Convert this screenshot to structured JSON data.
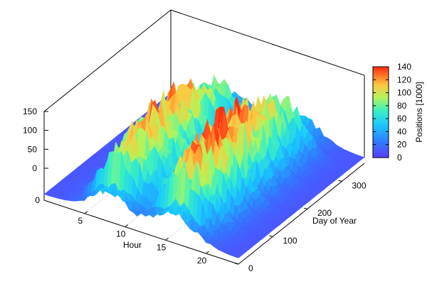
{
  "chart_data": {
    "type": "surface3d",
    "title": "",
    "xlabel": "Hour",
    "ylabel": "Day of Year",
    "zlabel": "",
    "colorbar_label": "Positions [1000]",
    "x_ticks": [
      "5",
      "10",
      "15",
      "20"
    ],
    "y_ticks": [
      "0",
      "100",
      "200",
      "300"
    ],
    "z_ticks": [
      "0",
      "50",
      "100",
      "150"
    ],
    "x_origin_label": "0",
    "colorbar_ticks": [
      "0",
      "20",
      "40",
      "60",
      "80",
      "100",
      "120",
      "140"
    ],
    "xlim": [
      0,
      24
    ],
    "ylim": [
      0,
      365
    ],
    "zlim": [
      0,
      150
    ],
    "colorbar_range": [
      0,
      140
    ],
    "grid": true,
    "surface_summary": {
      "description_values": {
        "baseline_level": 10,
        "morning_peak_hour": 8,
        "morning_peak_value": 125,
        "evening_peak_hour": 16,
        "evening_peak_value": 135,
        "night_level": 12
      }
    }
  }
}
